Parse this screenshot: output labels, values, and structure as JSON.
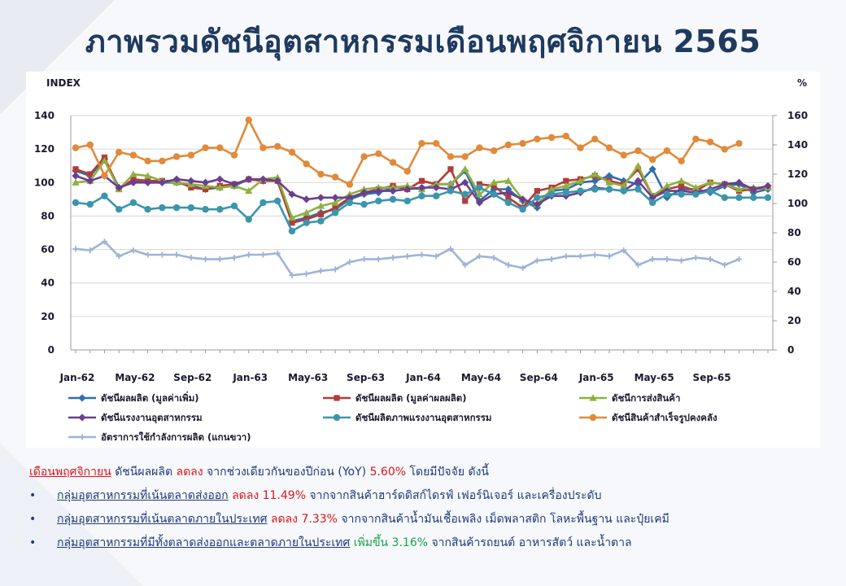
{
  "title": "ภาพรวมดัชนีอุตสาหกรรมเดือนพฤศจิกายน 2565",
  "colors": {
    "title": "#1f3a5f",
    "negative": "#e0151b",
    "positive": "#19a44a",
    "text": "#1f3a7a"
  },
  "chart_data": {
    "type": "line",
    "ylabel_left": "INDEX",
    "ylabel_right": "%",
    "ylim_left": [
      0,
      140
    ],
    "yticks_left": [
      "0",
      "20",
      "40",
      "60",
      "80",
      "100",
      "120",
      "140"
    ],
    "ylim_right": [
      0,
      160
    ],
    "yticks_right": [
      "0",
      "20",
      "40",
      "60",
      "80",
      "100",
      "120",
      "140",
      "160"
    ],
    "x_tick_labels": [
      "Jan-62",
      "May-62",
      "Sep-62",
      "Jan-63",
      "May-63",
      "Sep-63",
      "Jan-64",
      "May-64",
      "Sep-64",
      "Jan-65",
      "May-65",
      "Sep-65"
    ],
    "x_tick_indices": [
      0,
      4,
      8,
      12,
      16,
      20,
      24,
      28,
      32,
      36,
      40,
      44
    ],
    "grid": "horizontal",
    "legend_position": "bottom",
    "series": [
      {
        "name": "ดัชนีผลผลิต (มูลค่าเพิ่ม)",
        "color": "#2e6fae",
        "marker": "diamond",
        "axis": "left",
        "values": [
          107,
          104,
          114,
          97,
          101,
          100,
          100,
          100,
          98,
          96,
          97,
          98,
          102,
          101,
          101,
          77,
          79,
          82,
          84,
          90,
          93,
          94,
          97,
          97,
          96,
          99,
          99,
          107,
          89,
          96,
          96,
          89,
          85,
          95,
          96,
          100,
          101,
          104,
          101,
          99,
          108,
          91,
          96,
          96,
          94,
          98,
          99,
          94,
          96
        ]
      },
      {
        "name": "ดัชนีผลผลิต (มูลค่าผลผลิต)",
        "color": "#b33c39",
        "marker": "square",
        "axis": "left",
        "values": [
          108,
          105,
          115,
          96,
          102,
          101,
          101,
          101,
          97,
          96,
          98,
          99,
          102,
          101,
          101,
          76,
          78,
          81,
          85,
          91,
          94,
          96,
          98,
          96,
          101,
          99,
          108,
          89,
          99,
          98,
          91,
          85,
          95,
          97,
          101,
          102,
          104,
          101,
          99,
          108,
          92,
          96,
          98,
          95,
          100,
          99,
          95,
          96,
          97
        ]
      },
      {
        "name": "ดัชนีการส่งสินค้า",
        "color": "#8fb03e",
        "marker": "triangle",
        "axis": "left",
        "values": [
          100,
          101,
          113,
          96,
          105,
          104,
          101,
          100,
          99,
          98,
          97,
          98,
          95,
          102,
          103,
          79,
          82,
          86,
          88,
          93,
          96,
          97,
          97,
          98,
          96,
          99,
          99,
          108,
          93,
          100,
          101,
          90,
          87,
          96,
          98,
          101,
          105,
          100,
          98,
          110,
          92,
          98,
          101,
          97,
          100,
          99,
          96,
          97,
          97
        ]
      },
      {
        "name": "ดัชนีแรงงานอุตสาหกรรม",
        "color": "#6a3f8f",
        "marker": "diamond",
        "axis": "left",
        "values": [
          104,
          101,
          104,
          97,
          100,
          100,
          100,
          102,
          101,
          100,
          102,
          99,
          102,
          102,
          101,
          93,
          90,
          91,
          91,
          91,
          94,
          95,
          95,
          96,
          97,
          97,
          96,
          100,
          88,
          93,
          94,
          90,
          87,
          92,
          92,
          94,
          97,
          96,
          95,
          101,
          91,
          95,
          95,
          94,
          96,
          99,
          100,
          96,
          98
        ]
      },
      {
        "name": "ดัชนีผลิตภาพแรงงานอุตสาหกรรม",
        "color": "#3b95ad",
        "marker": "circle",
        "axis": "left",
        "values": [
          88,
          87,
          92,
          84,
          88,
          84,
          85,
          85,
          85,
          84,
          84,
          86,
          78,
          88,
          89,
          71,
          76,
          77,
          82,
          88,
          87,
          89,
          90,
          89,
          92,
          92,
          95,
          93,
          97,
          93,
          88,
          84,
          91,
          93,
          94,
          95,
          96,
          96,
          95,
          96,
          88,
          93,
          93,
          93,
          95,
          91,
          91,
          91,
          91
        ]
      },
      {
        "name": "ดัชนีสินค้าสำเร็จรูปคงคลัง",
        "color": "#e08a3a",
        "marker": "circle",
        "axis": "right",
        "values": [
          138,
          140,
          119,
          135,
          133,
          129,
          129,
          132,
          133,
          138,
          138,
          133,
          157,
          138,
          139,
          135,
          127,
          120,
          118,
          113,
          132,
          134,
          128,
          122,
          141,
          141,
          132,
          132,
          138,
          136,
          140,
          141,
          144,
          145,
          146,
          138,
          144,
          138,
          133,
          136,
          130,
          136,
          129,
          144,
          142,
          137,
          141
        ]
      },
      {
        "name": "อัตราการใช้กำลังการผลิต (แกนขวา)",
        "color": "#9fb3d6",
        "marker": "plus",
        "axis": "right",
        "values": [
          69,
          68,
          74,
          64,
          68,
          65,
          65,
          65,
          63,
          62,
          62,
          63,
          65,
          65,
          66,
          51,
          52,
          54,
          55,
          60,
          62,
          62,
          63,
          64,
          65,
          64,
          69,
          58,
          64,
          63,
          58,
          56,
          61,
          62,
          64,
          64,
          65,
          64,
          68,
          58,
          62,
          62,
          61,
          63,
          62,
          58,
          62
        ]
      }
    ]
  },
  "notes": {
    "summary": {
      "month": "เดือนพฤศจิกายน",
      "t1": " ดัชนีผลผลิต ",
      "direction": "ลดลง",
      "t2": " จากช่วงเดียวกันของปีก่อน (YoY) ",
      "value": "5.60%",
      "t3": " โดยมีปัจจัย ดังนี้"
    },
    "bullets": [
      {
        "bullet": "•",
        "group": "กลุ่มอุตสาหกรรมที่เน้นตลาดส่งออก",
        "change": "ลดลง 11.49%",
        "tone": "red",
        "detail": " จากจากสินค้าฮาร์ดดิสก์ไดรฟ์ เฟอร์นิเจอร์ และเครื่องประดับ"
      },
      {
        "bullet": "•",
        "group": "กลุ่มอุตสาหกรรมที่เน้นตลาดภายในประเทศ",
        "change": "ลดลง 7.33%",
        "tone": "red",
        "detail": " จากจากสินค้าน้ำมันเชื้อเพลิง เม็ดพลาสติก โลหะพื้นฐาน และปุ๋ยเคมี"
      },
      {
        "bullet": "•",
        "group": "กลุ่มอุตสาหกรรมที่มีทั้งตลาดส่งออกและตลาดภายในประเทศ",
        "change": "เพิ่มขึ้น 3.16%",
        "tone": "green",
        "detail": " จากสินค้ารถยนต์ อาหารสัตว์ และน้ำตาล"
      }
    ]
  }
}
